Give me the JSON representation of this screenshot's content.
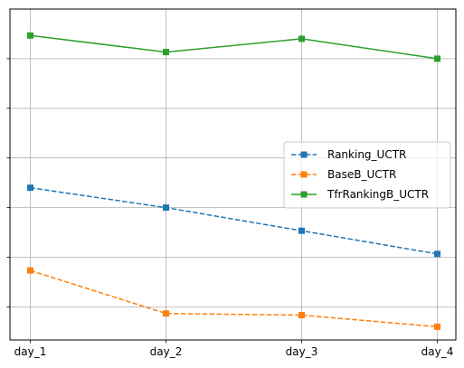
{
  "chart_data": {
    "type": "line",
    "title": "",
    "xlabel": "",
    "ylabel": "",
    "categories": [
      "day_1",
      "day_2",
      "day_3",
      "day_4"
    ],
    "ylim": [
      0,
      1
    ],
    "y_tick_values": [
      0.1,
      0.25,
      0.4,
      0.55,
      0.7,
      0.85
    ],
    "y_tick_labels_shown": false,
    "grid": true,
    "legend_position": "center-right",
    "series": [
      {
        "name": "Ranking_UCTR",
        "values": [
          0.46,
          0.4,
          0.33,
          0.26
        ],
        "color": "#1f77b4",
        "linestyle": "dashed",
        "marker": "square"
      },
      {
        "name": "BaseB_UCTR",
        "values": [
          0.21,
          0.08,
          0.075,
          0.04
        ],
        "color": "#ff7f0e",
        "linestyle": "dashed",
        "marker": "square"
      },
      {
        "name": "TfrRankingB_UCTR",
        "values": [
          0.92,
          0.87,
          0.91,
          0.85
        ],
        "color": "#2ca02c",
        "linestyle": "solid",
        "marker": "square"
      }
    ]
  }
}
